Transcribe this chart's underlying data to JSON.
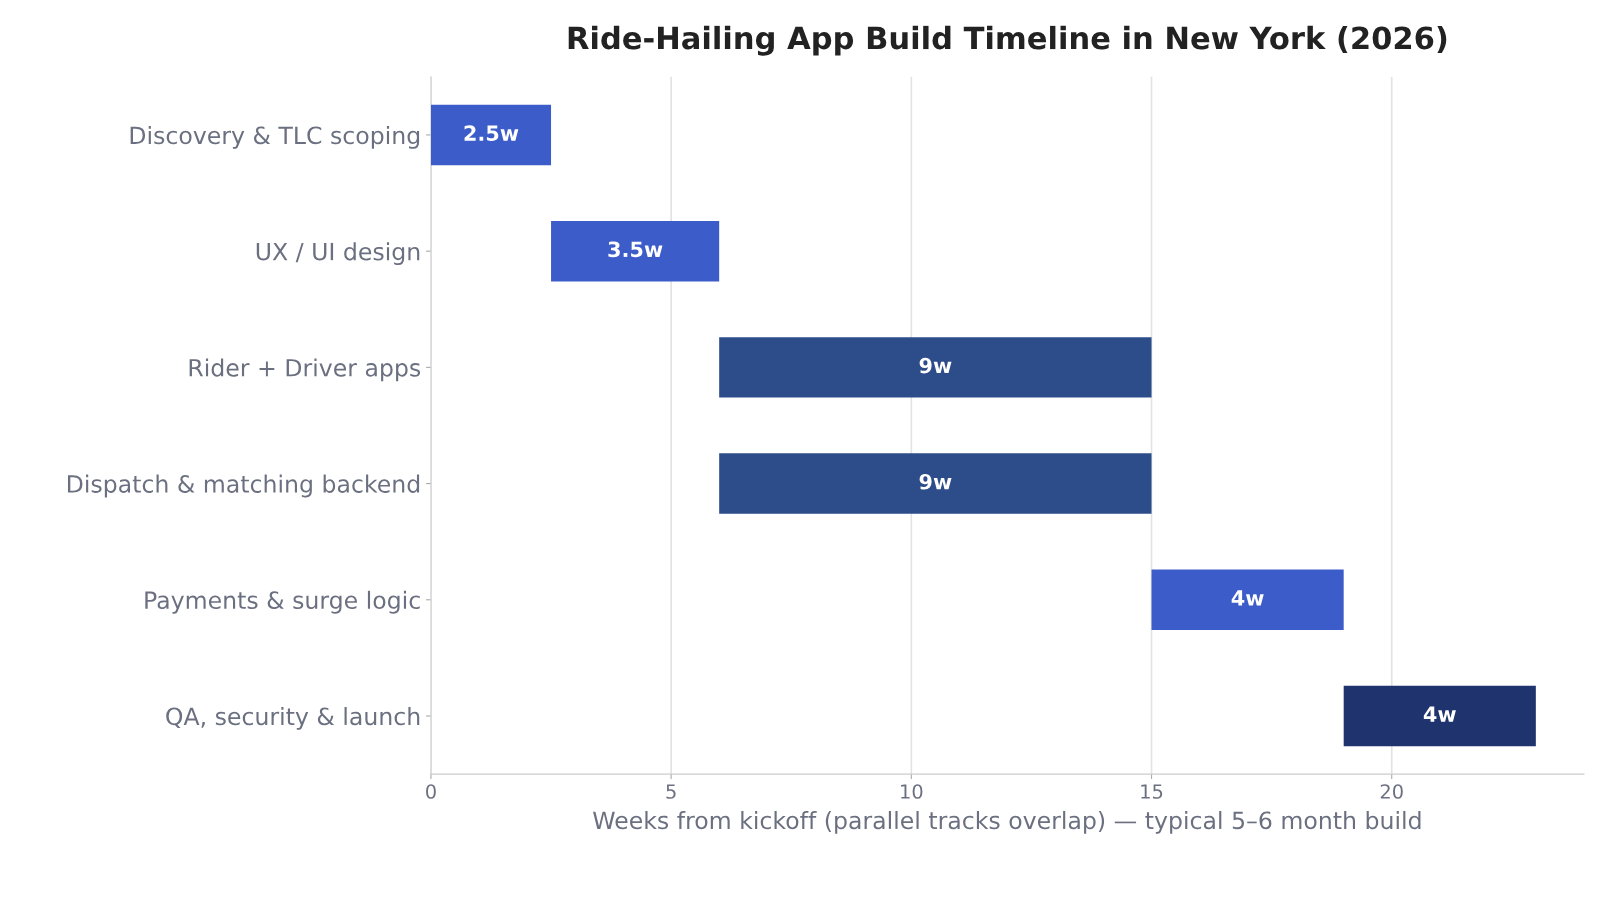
{
  "chart_data": {
    "type": "bar",
    "orientation": "horizontal",
    "title": "Ride-Hailing App Build Timeline in New York (2026)",
    "xlabel": "Weeks from kickoff (parallel tracks overlap) — typical 5–6 month build",
    "categories": [
      "Discovery & TLC scoping",
      "UX / UI design",
      "Rider + Driver apps",
      "Dispatch & matching backend",
      "Payments & surge logic",
      "QA, security & launch"
    ],
    "base": [
      0,
      2.5,
      6,
      6,
      15,
      19
    ],
    "values": [
      2.5,
      3.5,
      9,
      9,
      4,
      4
    ],
    "value_labels": [
      "2.5w",
      "3.5w",
      "9w",
      "9w",
      "4w",
      "4w"
    ],
    "colors": [
      "#3c5cc9",
      "#3c5cc9",
      "#2d4c8a",
      "#2d4c8a",
      "#3c5cc9",
      "#1f346e"
    ],
    "xlim": [
      0,
      24
    ],
    "xticks": [
      0,
      5,
      10,
      15,
      20
    ],
    "grid": "x",
    "legend": false
  }
}
